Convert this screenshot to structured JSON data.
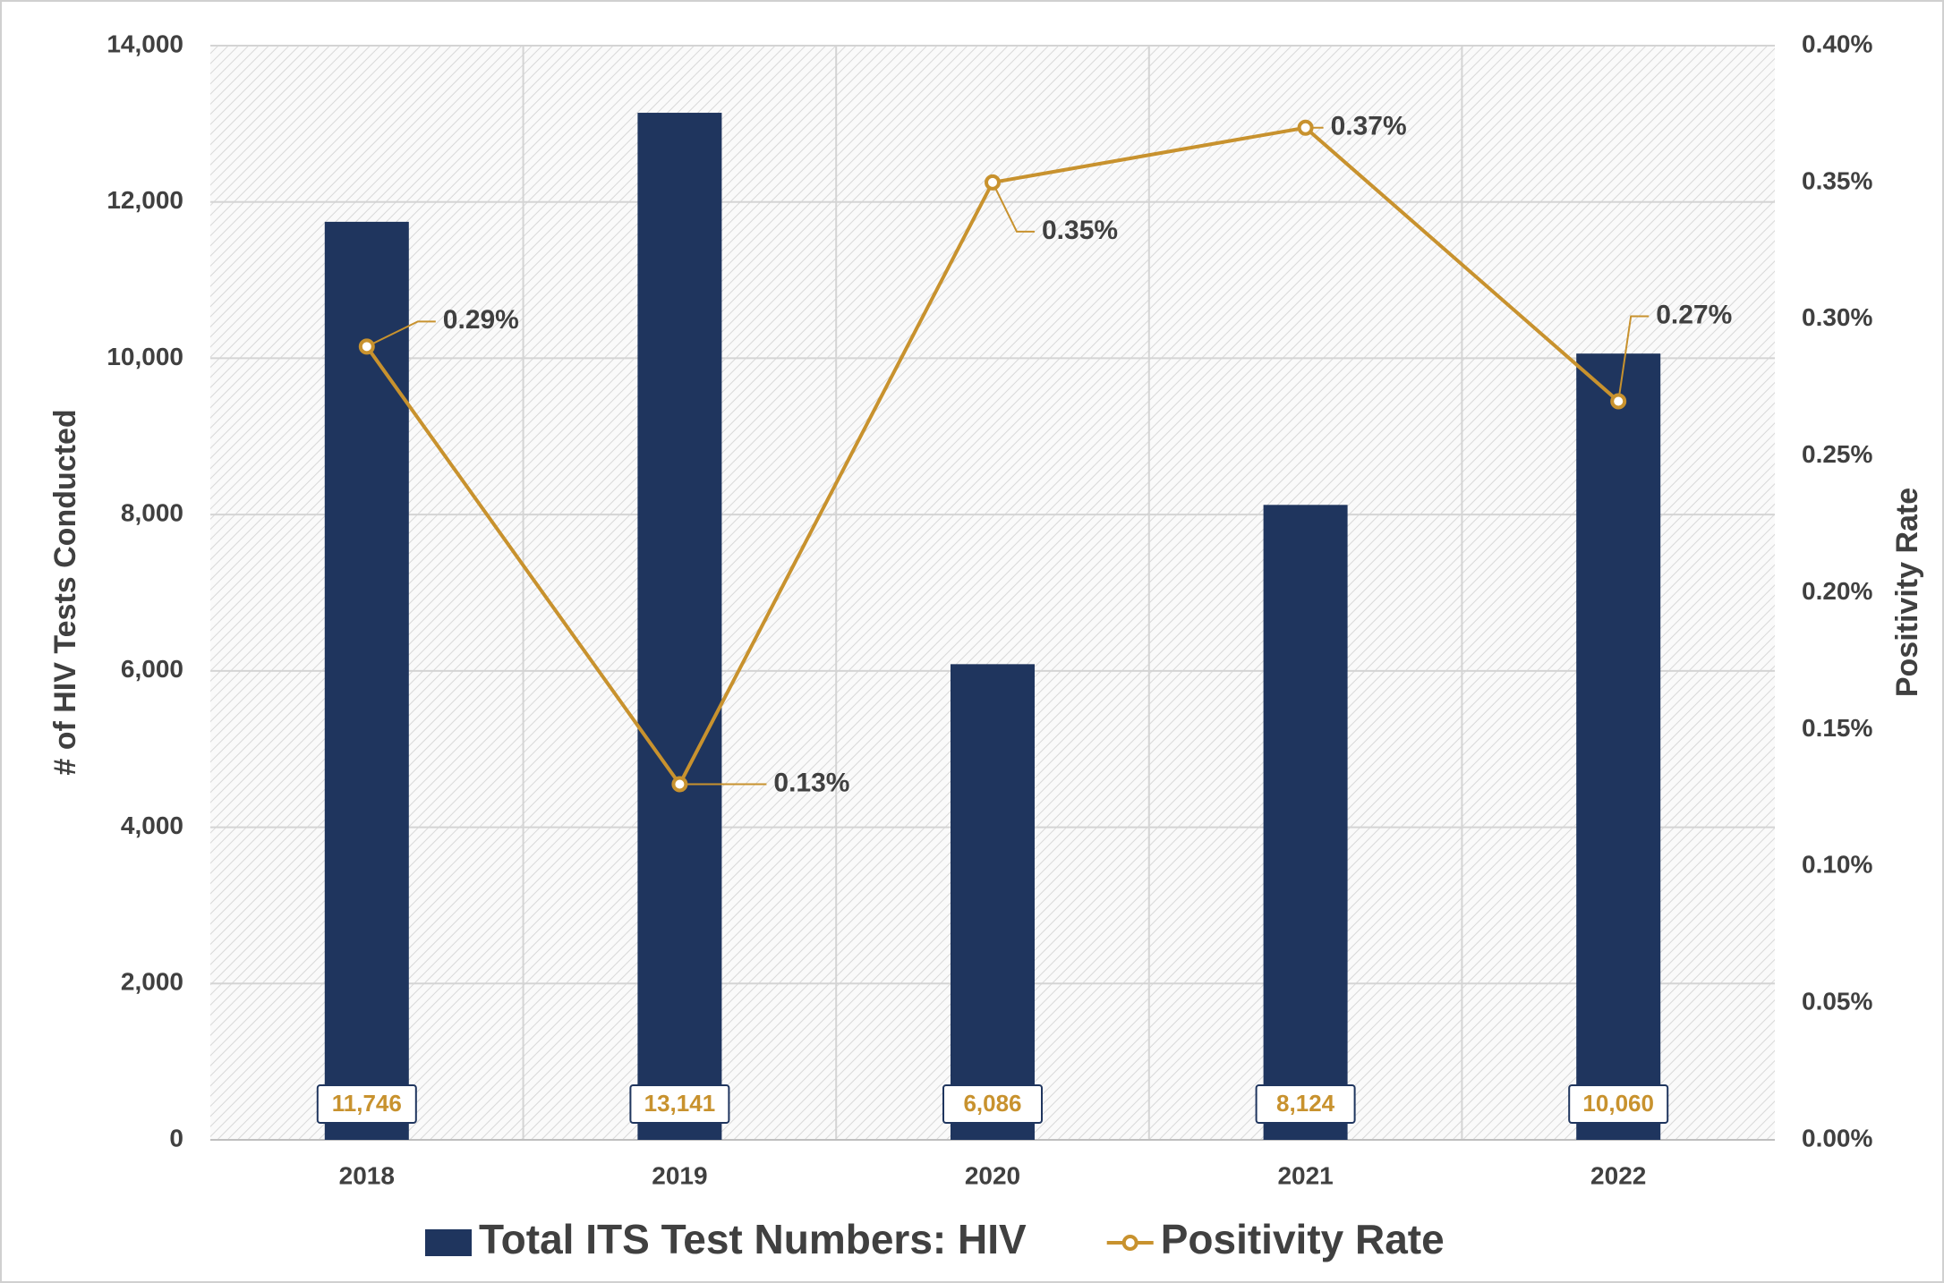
{
  "chart_data": {
    "type": "bar",
    "y_label": "# of HIV Tests Conducted",
    "y2_label": "Positivity Rate",
    "categories": [
      "2018",
      "2019",
      "2020",
      "2021",
      "2022"
    ],
    "series": [
      {
        "name": "Total ITS Test Numbers: HIV",
        "type": "bar",
        "color": "#1f355e",
        "values": [
          11746,
          13141,
          6086,
          8124,
          10060
        ],
        "value_labels": [
          "11,746",
          "13,141",
          "6,086",
          "8,124",
          "10,060"
        ]
      },
      {
        "name": "Positivity Rate",
        "type": "line",
        "axis": "y2",
        "color": "#c8922e",
        "values": [
          0.29,
          0.13,
          0.35,
          0.37,
          0.27
        ],
        "value_labels": [
          "0.29%",
          "0.13%",
          "0.35%",
          "0.37%",
          "0.27%"
        ]
      }
    ],
    "ylim": [
      0,
      14000
    ],
    "yticks": [
      0,
      {
        "value": 2000,
        "label": "2,000"
      },
      {
        "value": 4000,
        "label": "4,000"
      },
      {
        "value": 6000,
        "label": "6,000"
      },
      {
        "value": 8000,
        "label": "8,000"
      },
      {
        "value": 10000,
        "label": "10,000"
      },
      {
        "value": 12000,
        "label": "12,000"
      },
      {
        "value": 14000,
        "label": "14,000"
      }
    ],
    "y2lim": [
      0,
      0.4
    ],
    "y2ticks": [
      {
        "value": 0,
        "label": "0.00%"
      },
      {
        "value": 0.05,
        "label": "0.05%"
      },
      {
        "value": 0.1,
        "label": "0.10%"
      },
      {
        "value": 0.15,
        "label": "0.15%"
      },
      {
        "value": 0.2,
        "label": "0.20%"
      },
      {
        "value": 0.25,
        "label": "0.25%"
      },
      {
        "value": 0.3,
        "label": "0.30%"
      },
      {
        "value": 0.35,
        "label": "0.35%"
      },
      {
        "value": 0.4,
        "label": "0.40%"
      }
    ],
    "grid": true,
    "legend": "bottom"
  }
}
